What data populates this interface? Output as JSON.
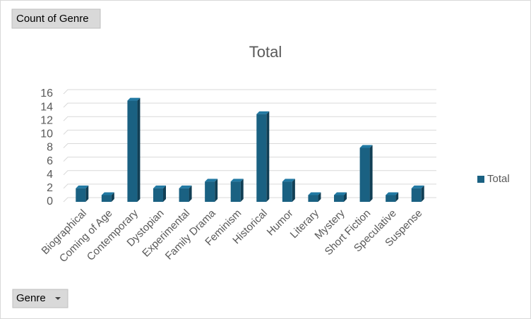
{
  "pivot_buttons": {
    "value_field": "Count of Genre",
    "axis_field": "Genre"
  },
  "chart_data": {
    "type": "bar",
    "title": "Total",
    "categories": [
      "Biographical",
      "Coming of Age",
      "Contemporary",
      "Dystopian",
      "Experimental",
      "Family Drama",
      "Feminism",
      "Historical",
      "Humor",
      "Literary",
      "Mystery",
      "Short Fiction",
      "Speculative",
      "Suspense"
    ],
    "series": [
      {
        "name": "Total",
        "color": "#1a6182",
        "values": [
          2,
          1,
          15,
          2,
          2,
          3,
          3,
          13,
          3,
          1,
          1,
          8,
          1,
          2
        ]
      }
    ],
    "ylim": [
      0,
      16
    ],
    "yticks": [
      0,
      2,
      4,
      6,
      8,
      10,
      12,
      14,
      16
    ],
    "grid": true,
    "legend": "right"
  }
}
